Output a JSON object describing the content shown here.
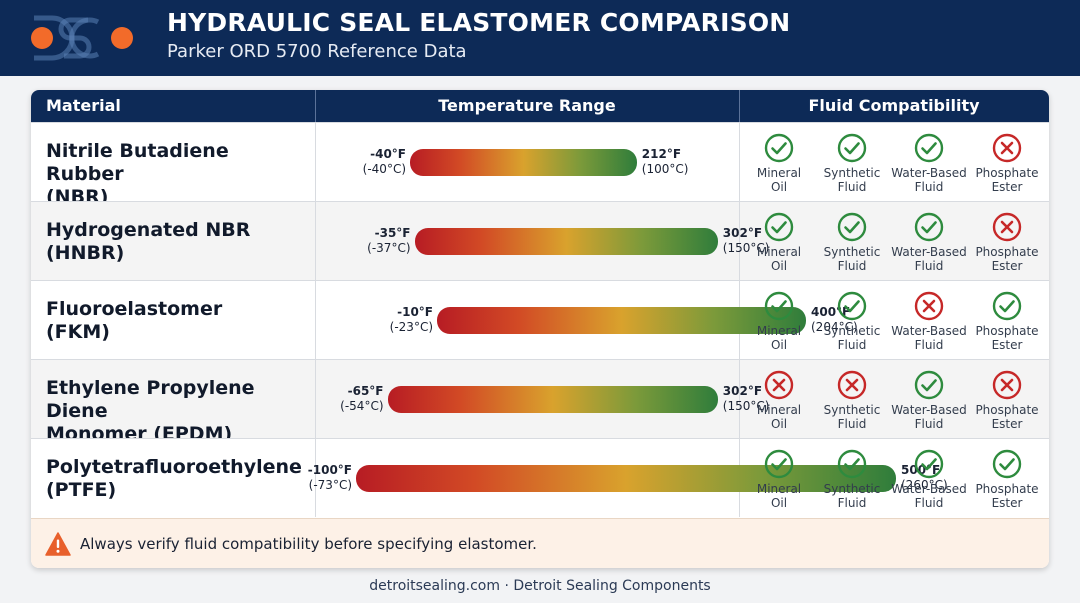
{
  "header": {
    "title": "HYDRAULIC SEAL ELASTOMER COMPARISON",
    "subtitle": "Parker ORD 5700 Reference Data",
    "logo_icon": "dsc-logo-icon"
  },
  "table": {
    "columns": [
      "Material",
      "Temperature Range",
      "Fluid Compatibility"
    ],
    "rows": [
      {
        "material_line1": "Nitrile Butadiene Rubber",
        "material_line2": "(NBR)",
        "temp_min_f": "-40°F",
        "temp_min_c": "(-40°C)",
        "temp_max_f": "212°F",
        "temp_max_c": "(100°C)",
        "range_f": [
          -40,
          212
        ],
        "fluids": [
          {
            "line1": "Mineral",
            "line2": "Oil",
            "compatible": true
          },
          {
            "line1": "Synthetic",
            "line2": "Fluid",
            "compatible": true
          },
          {
            "line1": "Water-Based",
            "line2": "Fluid",
            "compatible": true
          },
          {
            "line1": "Phosphate",
            "line2": "Ester",
            "compatible": false
          }
        ]
      },
      {
        "material_line1": "Hydrogenated NBR",
        "material_line2": "(HNBR)",
        "temp_min_f": "-35°F",
        "temp_min_c": "(-37°C)",
        "temp_max_f": "302°F",
        "temp_max_c": "(150°C)",
        "range_f": [
          -35,
          302
        ],
        "fluids": [
          {
            "line1": "Mineral",
            "line2": "Oil",
            "compatible": true
          },
          {
            "line1": "Synthetic",
            "line2": "Fluid",
            "compatible": true
          },
          {
            "line1": "Water-Based",
            "line2": "Fluid",
            "compatible": true
          },
          {
            "line1": "Phosphate",
            "line2": "Ester",
            "compatible": false
          }
        ]
      },
      {
        "material_line1": "Fluoroelastomer",
        "material_line2": "(FKM)",
        "temp_min_f": "-10°F",
        "temp_min_c": "(-23°C)",
        "temp_max_f": "400°F",
        "temp_max_c": "(204°C)",
        "range_f": [
          -10,
          400
        ],
        "fluids": [
          {
            "line1": "Mineral",
            "line2": "Oil",
            "compatible": true
          },
          {
            "line1": "Synthetic",
            "line2": "Fluid",
            "compatible": true
          },
          {
            "line1": "Water-Based",
            "line2": "Fluid",
            "compatible": false
          },
          {
            "line1": "Phosphate",
            "line2": "Ester",
            "compatible": true
          }
        ]
      },
      {
        "material_line1": "Ethylene Propylene Diene",
        "material_line2": "Monomer (EPDM)",
        "temp_min_f": "-65°F",
        "temp_min_c": "(-54°C)",
        "temp_max_f": "302°F",
        "temp_max_c": "(150°C)",
        "range_f": [
          -65,
          302
        ],
        "fluids": [
          {
            "line1": "Mineral",
            "line2": "Oil",
            "compatible": false
          },
          {
            "line1": "Synthetic",
            "line2": "Fluid",
            "compatible": false
          },
          {
            "line1": "Water-Based",
            "line2": "Fluid",
            "compatible": true
          },
          {
            "line1": "Phosphate",
            "line2": "Ester",
            "compatible": false
          }
        ]
      },
      {
        "material_line1": "Polytetrafluoroethylene",
        "material_line2": "(PTFE)",
        "temp_min_f": "-100°F",
        "temp_min_c": "(-73°C)",
        "temp_max_f": "500°F",
        "temp_max_c": "(260°C)",
        "range_f": [
          -100,
          500
        ],
        "fluids": [
          {
            "line1": "Mineral",
            "line2": "Oil",
            "compatible": true
          },
          {
            "line1": "Synthetic",
            "line2": "Fluid",
            "compatible": true
          },
          {
            "line1": "Water-Based",
            "line2": "Fluid",
            "compatible": true
          },
          {
            "line1": "Phosphate",
            "line2": "Ester",
            "compatible": true
          }
        ]
      }
    ]
  },
  "note": {
    "icon": "warning-icon",
    "text": "Always verify fluid compatibility before specifying elastomer."
  },
  "footer": {
    "credit": "detroitsealing.com · Detroit Sealing Components"
  },
  "colors": {
    "navy": "#0d2a57",
    "compatible": "#2e8b3e",
    "incompatible": "#c62828",
    "warning": "#e8602c",
    "logo_dot": "#f26b2a"
  }
}
